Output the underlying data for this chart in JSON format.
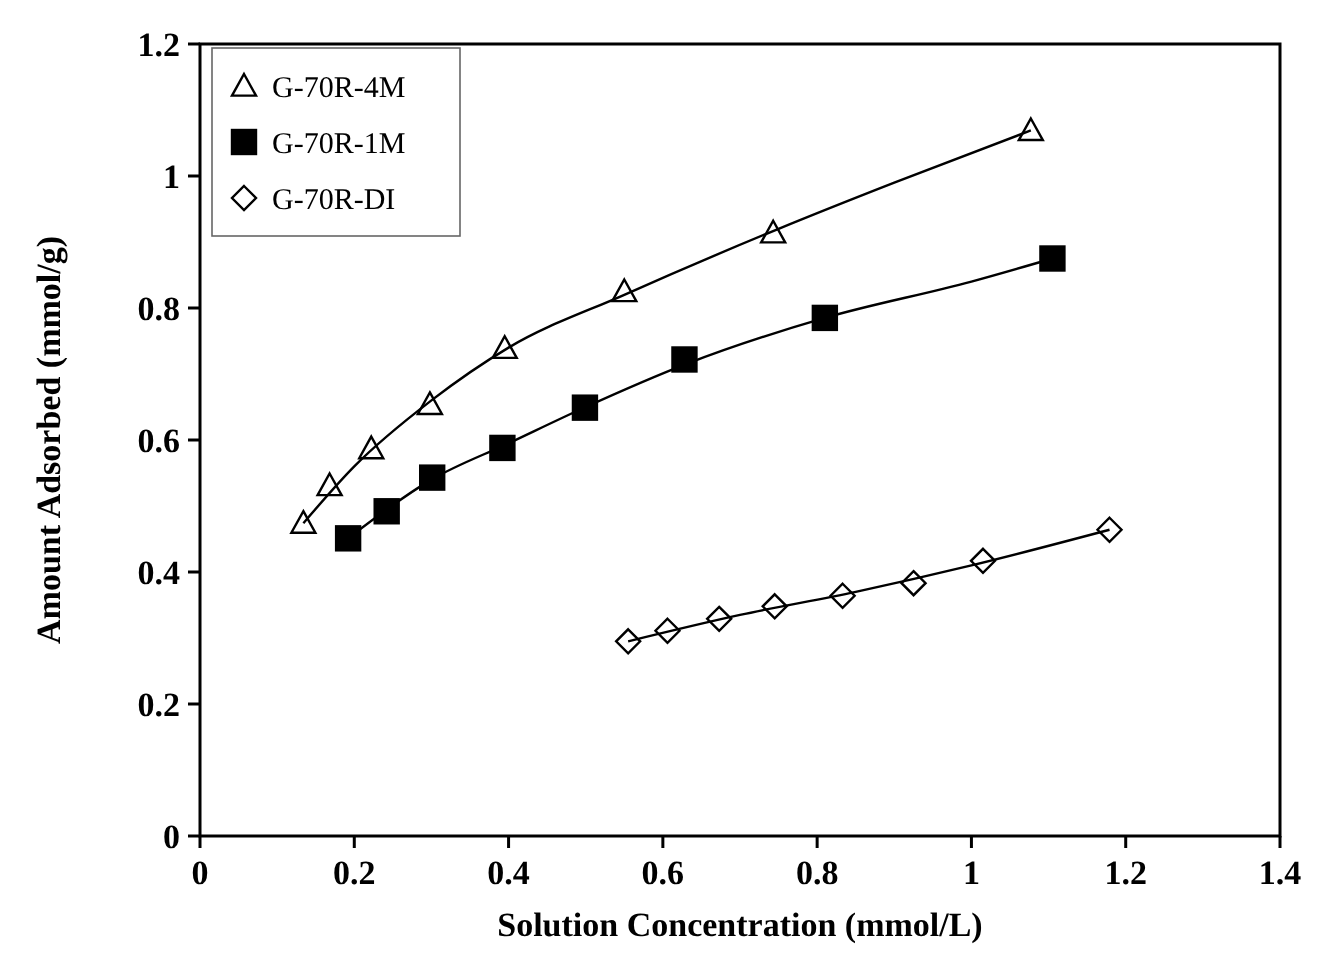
{
  "chart_data": {
    "type": "scatter",
    "xlabel": "Solution Concentration (mmol/L)",
    "ylabel": "Amount Adsorbed (mmol/g)",
    "xlim": [
      0,
      1.4
    ],
    "xticks": [
      0,
      0.2,
      0.4,
      0.6,
      0.8,
      1,
      1.2,
      1.4
    ],
    "ylim": [
      0,
      1.2
    ],
    "yticks": [
      0,
      0.2,
      0.4,
      0.6,
      0.8,
      1,
      1.2
    ],
    "grid": false,
    "legend": "top left",
    "series": [
      {
        "name": "G-70R-4M",
        "color": "#000000",
        "marker": "triangle",
        "x": [
          0.134,
          0.168,
          0.222,
          0.298,
          0.395,
          0.55,
          0.743,
          1.077
        ],
        "values": [
          0.474,
          0.531,
          0.587,
          0.654,
          0.739,
          0.825,
          0.914,
          1.069
        ]
      },
      {
        "name": "G-70R-1M",
        "color": "#000000",
        "marker": "square",
        "x": [
          0.192,
          0.242,
          0.301,
          0.392,
          0.499,
          0.628,
          0.81,
          1.105
        ],
        "values": [
          0.451,
          0.492,
          0.543,
          0.588,
          0.649,
          0.722,
          0.785,
          0.875
        ]
      },
      {
        "name": "G-70R-DI",
        "color": "#000000",
        "marker": "diamond",
        "x": [
          0.555,
          0.606,
          0.673,
          0.745,
          0.833,
          0.925,
          1.015,
          1.179
        ],
        "values": [
          0.295,
          0.311,
          0.329,
          0.348,
          0.364,
          0.383,
          0.417,
          0.464
        ]
      },
      {
        "type": "line",
        "color": "#000000",
        "x": [
          0.134,
          0.2,
          0.3,
          0.4,
          0.55,
          0.75,
          0.9,
          1.077
        ],
        "values": [
          0.474,
          0.56,
          0.66,
          0.74,
          0.82,
          0.92,
          0.99,
          1.069
        ]
      },
      {
        "type": "line",
        "color": "#000000",
        "x": [
          0.192,
          0.3,
          0.4,
          0.5,
          0.63,
          0.81,
          1.0,
          1.105
        ],
        "values": [
          0.451,
          0.54,
          0.595,
          0.65,
          0.715,
          0.785,
          0.84,
          0.875
        ]
      },
      {
        "type": "line",
        "color": "#000000",
        "x": [
          0.555,
          0.7,
          0.85,
          1.0,
          1.179
        ],
        "values": [
          0.295,
          0.335,
          0.37,
          0.41,
          0.464
        ]
      }
    ]
  }
}
